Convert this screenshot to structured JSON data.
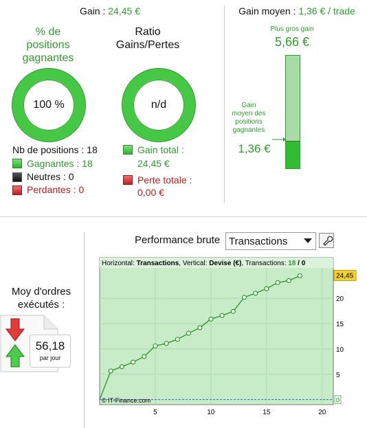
{
  "header": {
    "gain_label": "Gain : ",
    "gain_value": "24,45 €",
    "gain_moyen_label": "Gain moyen : ",
    "gain_moyen_value": "1,36 € / trade"
  },
  "pct_positions": {
    "title_lines": [
      "% de",
      "positions",
      "gagnantes"
    ],
    "ring_value": "100 %"
  },
  "ratio": {
    "title_lines": [
      "Ratio",
      "Gains/Pertes"
    ],
    "ring_value": "n/d"
  },
  "positions": {
    "count_label": "Nb de positions : 18",
    "gagnantes": "Gagnantes : 18",
    "neutres": "Neutres : 0",
    "perdantes": "Perdantes : 0",
    "gain_total_label": "Gain total :",
    "gain_total_value": "24,45 €",
    "perte_totale_label": "Perte totale :",
    "perte_totale_value": "0,00 €"
  },
  "gain_moyen_bar": {
    "plus_gros_gain_label": "Plus gros gain",
    "plus_gros_gain_value": "5,66 €",
    "moyen_label_lines": [
      "Gain",
      "moyen des",
      "positions",
      "gagnantes"
    ],
    "moyen_value": "1,36 €",
    "fill_fraction": 0.24
  },
  "performance": {
    "label": "Performance brute",
    "select_value": "Transactions"
  },
  "ordres": {
    "title_lines": [
      "Moy d'ordres",
      "exécutés :"
    ],
    "value": "56,18",
    "unit": "par jour"
  },
  "colors": {
    "accent_green": "#2f9a2f",
    "negative_red": "#b11e1e",
    "chart_bg": "#c8ecc8"
  },
  "chart_data": {
    "type": "line",
    "header_parts": [
      "Horizontal: ",
      "Transactions",
      ", Vertical: ",
      "Devise (€)",
      ", Transactions: ",
      "18",
      " / 0"
    ],
    "x": [
      0,
      1,
      2,
      3,
      4,
      5,
      6,
      7,
      8,
      9,
      10,
      11,
      12,
      13,
      14,
      15,
      16,
      17,
      18
    ],
    "y": [
      0,
      5.66,
      6.5,
      7.4,
      8.5,
      10.6,
      11.1,
      11.9,
      13.1,
      14.2,
      15.9,
      16.6,
      17.4,
      20.2,
      21.0,
      21.9,
      23.1,
      23.5,
      24.45
    ],
    "xlim": [
      0,
      21
    ],
    "ylim": [
      -1,
      26
    ],
    "xticks": [
      "5",
      "10",
      "15",
      "20"
    ],
    "xtick_values": [
      5,
      10,
      15,
      20
    ],
    "yticks": [
      "5",
      "10",
      "15",
      "20"
    ],
    "ytick_values": [
      5,
      10,
      15,
      20
    ],
    "last_value_label": "24,45",
    "zero_label": "0",
    "copyright": "© IT-Finance.com",
    "grid": true
  }
}
